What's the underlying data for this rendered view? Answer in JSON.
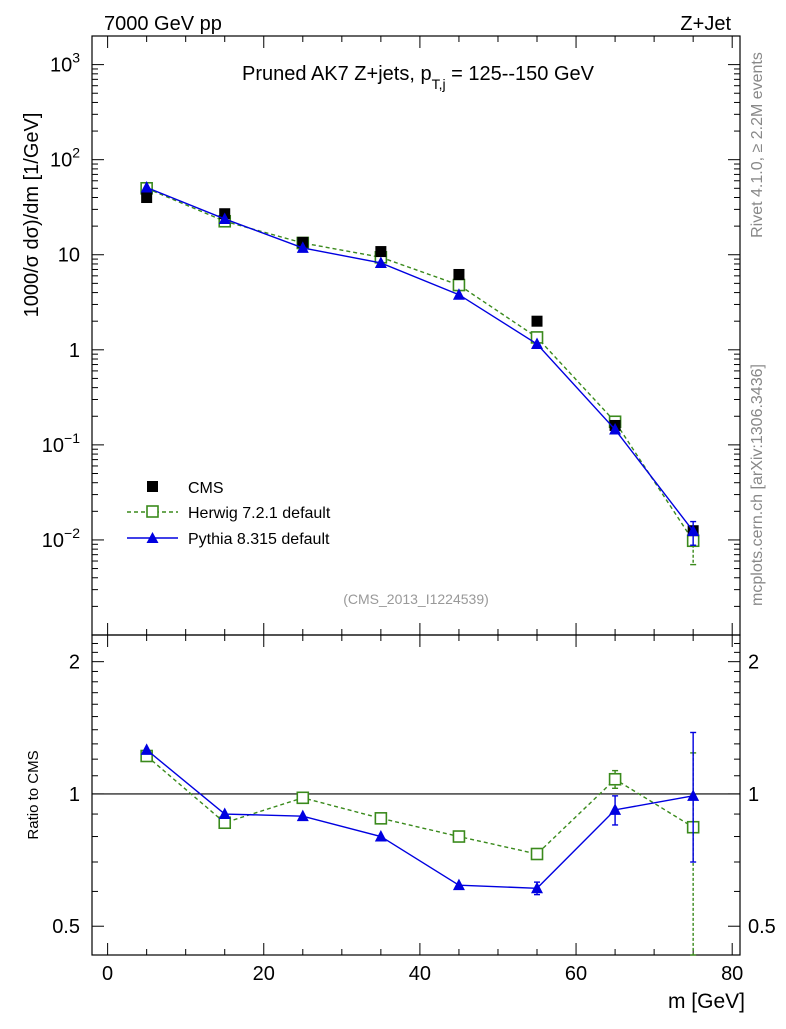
{
  "header": {
    "left_label": "7000 GeV pp",
    "right_label": "Z+Jet",
    "side_top": "Rivet 4.1.0, ≥ 2.2M events",
    "side_bottom": "mcplots.cern.ch [arXiv:1306.3436]",
    "watermark": "(CMS_2013_I1224539)"
  },
  "chart_data": {
    "type": "line",
    "title_main": "Pruned AK7 Z+jets, p",
    "title_sub": "T,j",
    "title_tail": " = 125--150 GeV",
    "x": [
      5,
      15,
      25,
      35,
      45,
      55,
      65,
      75
    ],
    "xlim": [
      -2,
      81
    ],
    "xticks": [
      "0",
      "20",
      "40",
      "60",
      "80"
    ],
    "xlabel": "m [GeV]",
    "ylabel": "1000/σ  dσ)/dm [1/GeV]",
    "main_ylim": [
      0.001,
      2000
    ],
    "main_yticks": [
      {
        "base": "10",
        "exp": "3"
      },
      {
        "base": "10",
        "exp": "2"
      },
      {
        "base": "10",
        "exp": ""
      },
      {
        "base": "1",
        "exp": ""
      },
      {
        "base": "10",
        "exp": "−1"
      },
      {
        "base": "10",
        "exp": "−2"
      }
    ],
    "series": [
      {
        "name": "CMS",
        "color": "#000000",
        "marker": "square-filled",
        "values": [
          40,
          27,
          13.5,
          10.8,
          6.2,
          2.0,
          0.16,
          0.0125
        ]
      },
      {
        "name": "Herwig 7.2.1 default",
        "color": "#3a8a1c",
        "marker": "square-open",
        "values": [
          50,
          22.5,
          13.3,
          9.4,
          4.8,
          1.35,
          0.175,
          0.0098
        ],
        "err_lo": [
          0,
          0,
          0,
          0,
          0,
          0,
          0,
          0.0043
        ],
        "err_hi": [
          0,
          0,
          0,
          0,
          0,
          0,
          0,
          0.003
        ]
      },
      {
        "name": "Pythia 8.315 default",
        "color": "#0000e0",
        "marker": "triangle",
        "values": [
          51,
          23.8,
          11.8,
          8.2,
          3.8,
          1.15,
          0.145,
          0.0124
        ],
        "err_lo": [
          0,
          0,
          0,
          0,
          0,
          0,
          0,
          0.0036
        ],
        "err_hi": [
          0,
          0,
          0,
          0,
          0,
          0,
          0,
          0.0032
        ]
      }
    ],
    "ratio": {
      "ylabel": "Ratio to CMS",
      "ylim": [
        0.43,
        2.3
      ],
      "yticks": [
        "0.5",
        "1",
        "2"
      ],
      "herwig": [
        1.22,
        0.86,
        0.98,
        0.88,
        0.8,
        0.73,
        1.08,
        0.84
      ],
      "herwig_err_lo": [
        0,
        0,
        0,
        0,
        0,
        0.02,
        0.05,
        0.41
      ],
      "herwig_err_hi": [
        0,
        0,
        0,
        0,
        0,
        0.02,
        0.05,
        0.4
      ],
      "pythia": [
        1.26,
        0.9,
        0.89,
        0.8,
        0.62,
        0.61,
        0.92,
        0.99
      ],
      "pythia_err_lo": [
        0,
        0,
        0,
        0,
        0,
        0.02,
        0.07,
        0.29
      ],
      "pythia_err_hi": [
        0,
        0,
        0,
        0,
        0,
        0.02,
        0.07,
        0.39
      ]
    }
  }
}
